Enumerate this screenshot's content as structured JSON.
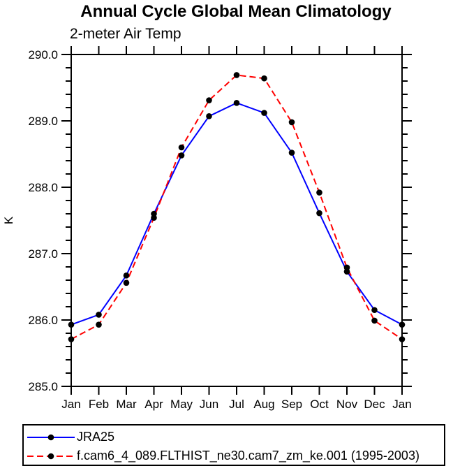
{
  "chart_data": {
    "type": "line",
    "title": "Annual Cycle Global Mean Climatology",
    "subtitle": "2-meter Air Temp",
    "ylabel": "K",
    "categories": [
      "Jan",
      "Feb",
      "Mar",
      "Apr",
      "May",
      "Jun",
      "Jul",
      "Aug",
      "Sep",
      "Oct",
      "Nov",
      "Dec",
      "Jan"
    ],
    "ylim": [
      285.0,
      290.0
    ],
    "ytick_interval": 1.0,
    "yminor_interval": 0.2,
    "ytick_labels": [
      "285.0",
      "286.0",
      "287.0",
      "288.0",
      "289.0",
      "290.0"
    ],
    "grid": false,
    "legend_position": "bottom-left",
    "axis_color": "#000000",
    "marker": "filled-circle",
    "marker_color": "#000000",
    "series": [
      {
        "name": "JRA25",
        "color": "#0000ff",
        "style": "solid",
        "values": [
          285.93,
          286.08,
          286.67,
          287.6,
          288.48,
          289.07,
          289.27,
          289.12,
          288.52,
          287.61,
          286.73,
          286.15,
          285.93
        ]
      },
      {
        "name": "f.cam6_4_089.FLTHIST_ne30.cam7_zm_ke.001 (1995-2003)",
        "color": "#ff0000",
        "style": "dashed",
        "values": [
          285.71,
          285.93,
          286.56,
          287.54,
          288.6,
          289.31,
          289.69,
          289.64,
          288.98,
          287.92,
          286.79,
          285.99,
          285.71
        ]
      }
    ]
  }
}
